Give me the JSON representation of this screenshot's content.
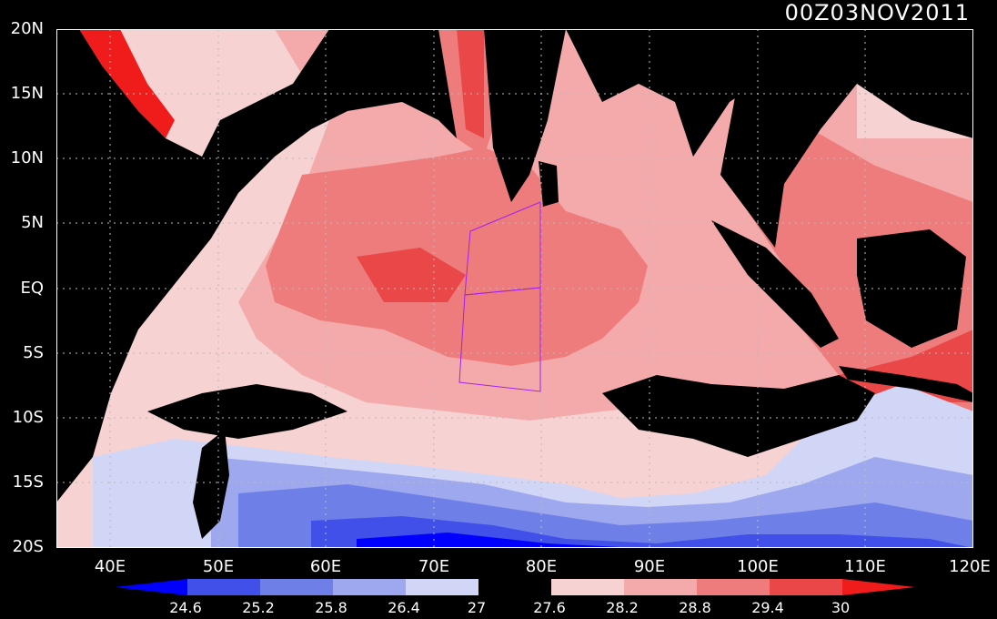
{
  "header": {
    "timestamp": "00Z03NOV2011"
  },
  "axes": {
    "y_ticks": [
      "20N",
      "15N",
      "10N",
      "5N",
      "EQ",
      "5S",
      "10S",
      "15S",
      "20S"
    ],
    "x_ticks": [
      "40E",
      "50E",
      "60E",
      "70E",
      "80E",
      "90E",
      "100E",
      "110E",
      "120E"
    ],
    "lon_range": [
      35,
      120
    ],
    "lat_range": [
      -20,
      20
    ]
  },
  "colorbar": {
    "labels": [
      "24.6",
      "25.2",
      "25.8",
      "26.4",
      "27",
      "27.6",
      "28.2",
      "28.8",
      "29.4",
      "30"
    ],
    "colors": [
      "#0000ff",
      "#4050e8",
      "#6f7fe8",
      "#9ea8ee",
      "#d2d6f6",
      "#000000",
      "#f6d2d2",
      "#f4aaaa",
      "#ee7c7c",
      "#ea4848",
      "#f01c1c"
    ]
  },
  "colors": {
    "land": "#000000",
    "grid": "#bbbbbb",
    "box": "#a020f0"
  }
}
